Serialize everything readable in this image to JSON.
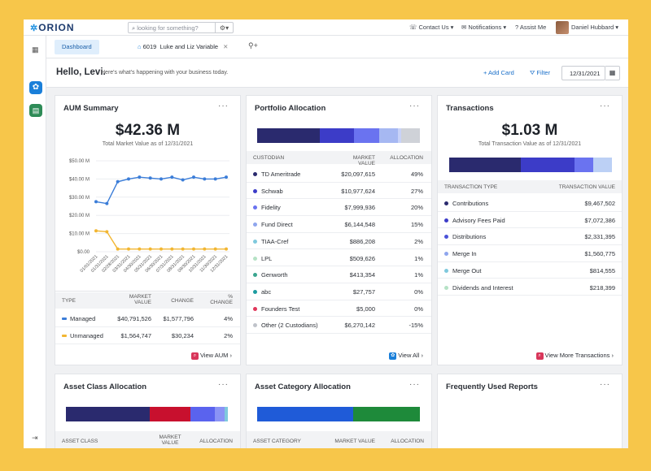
{
  "topbar": {
    "logo": "ORION",
    "search_placeholder": "looking for something?",
    "contact": "Contact Us ▾",
    "notifications": "Notifications ▾",
    "assist": "Assist Me",
    "user": "Daniel Hubbard ▾"
  },
  "tabs": {
    "dashboard": "Dashboard",
    "household_id": "6019",
    "household_name": "Luke and Liz Variable"
  },
  "greeting": {
    "hello": "Hello, Levi.",
    "sub": "Here's what's happening with your business today.",
    "add_card": "+ Add Card",
    "filter": "Filter",
    "date": "12/31/2021"
  },
  "aum": {
    "title": "AUM Summary",
    "total": "$42.36 M",
    "subtitle": "Total Market Value as of 12/31/2021",
    "headers": [
      "TYPE",
      "MARKET VALUE",
      "CHANGE",
      "% CHANGE"
    ],
    "rows": [
      {
        "type": "Managed",
        "value": "$40,791,526",
        "change": "$1,577,796",
        "pct": "4%",
        "color": "#3b7dd8"
      },
      {
        "type": "Unmanaged",
        "value": "$1,564,747",
        "change": "$30,234",
        "pct": "2%",
        "color": "#f2b632"
      }
    ],
    "footer": "View AUM"
  },
  "chart_data": {
    "type": "line",
    "title": "",
    "ylabel": "",
    "xlabel": "",
    "ylim": [
      0,
      50
    ],
    "y_ticks": [
      "$50.00 M",
      "$40.00 M",
      "$30.00 M",
      "$20.00 M",
      "$10.00 M",
      "$0.00"
    ],
    "categories": [
      "01/01/2021",
      "01/31/2021",
      "02/28/2021",
      "03/31/2021",
      "04/30/2021",
      "05/31/2021",
      "06/30/2021",
      "07/31/2021",
      "08/31/2021",
      "09/30/2021",
      "10/31/2021",
      "11/30/2021",
      "12/31/2021"
    ],
    "series": [
      {
        "name": "Managed",
        "color": "#3b7dd8",
        "values": [
          27.5,
          26.5,
          38.5,
          40.0,
          41.0,
          40.5,
          40.0,
          41.0,
          39.5,
          41.0,
          40.0,
          40.0,
          41.0
        ]
      },
      {
        "name": "Unmanaged",
        "color": "#f2b632",
        "values": [
          11.5,
          11.0,
          1.5,
          1.5,
          1.5,
          1.5,
          1.5,
          1.5,
          1.5,
          1.5,
          1.5,
          1.5,
          1.5
        ]
      }
    ]
  },
  "portfolio": {
    "title": "Portfolio Allocation",
    "headers": [
      "CUSTODIAN",
      "MARKET VALUE",
      "ALLOCATION"
    ],
    "segments": [
      {
        "color": "#2a2a6e",
        "pct": 49
      },
      {
        "color": "#3c3cc8",
        "pct": 27
      },
      {
        "color": "#6a73f0",
        "pct": 20
      },
      {
        "color": "#a6b8f2",
        "pct": 15
      },
      {
        "color": "#c8d2f8",
        "pct": 2
      },
      {
        "color": "#cfd2d8",
        "pct": 15
      }
    ],
    "rows": [
      {
        "name": "TD Ameritrade",
        "value": "$20,097,615",
        "alloc": "49%",
        "color": "#2a2a6e"
      },
      {
        "name": "Schwab",
        "value": "$10,977,624",
        "alloc": "27%",
        "color": "#3c3cc8"
      },
      {
        "name": "Fidelity",
        "value": "$7,999,936",
        "alloc": "20%",
        "color": "#6a73f0"
      },
      {
        "name": "Fund Direct",
        "value": "$6,144,548",
        "alloc": "15%",
        "color": "#8fa6ee"
      },
      {
        "name": "TIAA-Cref",
        "value": "$886,208",
        "alloc": "2%",
        "color": "#7fc9dd"
      },
      {
        "name": "LPL",
        "value": "$509,626",
        "alloc": "1%",
        "color": "#b5e2c5"
      },
      {
        "name": "Genworth",
        "value": "$413,354",
        "alloc": "1%",
        "color": "#3aa58f"
      },
      {
        "name": "abc",
        "value": "$27,757",
        "alloc": "0%",
        "color": "#1c9ca0"
      },
      {
        "name": "Founders Test",
        "value": "$5,000",
        "alloc": "0%",
        "color": "#e0365a"
      },
      {
        "name": "Other (2 Custodians)",
        "value": "$6,270,142",
        "alloc": "-15%",
        "color": "#bfc3ca"
      }
    ],
    "footer": "View All"
  },
  "transactions": {
    "title": "Transactions",
    "total": "$1.03 M",
    "subtitle": "Total Transaction Value as of 12/31/2021",
    "headers": [
      "TRANSACTION TYPE",
      "TRANSACTION VALUE"
    ],
    "segments": [
      {
        "color": "#2a2a6e",
        "pct": 42
      },
      {
        "color": "#3c3cc8",
        "pct": 32
      },
      {
        "color": "#6a73f0",
        "pct": 11
      },
      {
        "color": "#bcd0f5",
        "pct": 11
      }
    ],
    "rows": [
      {
        "name": "Contributions",
        "value": "$9,467,502",
        "color": "#2a2a6e"
      },
      {
        "name": "Advisory Fees Paid",
        "value": "$7,072,386",
        "color": "#3c3cc8"
      },
      {
        "name": "Distributions",
        "value": "$2,331,395",
        "color": "#4a52d8"
      },
      {
        "name": "Merge In",
        "value": "$1,560,775",
        "color": "#8fa6ee"
      },
      {
        "name": "Merge Out",
        "value": "$814,555",
        "color": "#7fc9dd"
      },
      {
        "name": "Dividends and Interest",
        "value": "$218,399",
        "color": "#b5e2c5"
      }
    ],
    "footer": "View More Transactions"
  },
  "asset_class": {
    "title": "Asset Class Allocation",
    "headers": [
      "ASSET CLASS",
      "MARKET VALUE",
      "ALLOCATION"
    ],
    "segments": [
      {
        "color": "#2a2a6e",
        "pct": 52
      },
      {
        "color": "#c8102e",
        "pct": 25
      },
      {
        "color": "#5a63ee",
        "pct": 15
      },
      {
        "color": "#8a93f5",
        "pct": 6
      },
      {
        "color": "#7fc9dd",
        "pct": 2
      }
    ]
  },
  "asset_category": {
    "title": "Asset Category Allocation",
    "headers": [
      "ASSET CATEGORY",
      "MARKET VALUE",
      "ALLOCATION"
    ],
    "segments": [
      {
        "color": "#1f5bd8",
        "pct": 59
      },
      {
        "color": "#1e8a3a",
        "pct": 41
      }
    ]
  },
  "reports": {
    "title": "Frequently Used Reports"
  }
}
